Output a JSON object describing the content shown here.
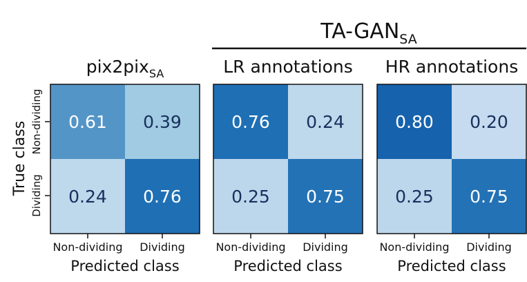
{
  "group_title": {
    "main": "TA-GAN",
    "sub": "SA"
  },
  "y_axis_label": "True class",
  "x_axis_label": "Predicted class",
  "categories": [
    "Non-dividing",
    "Dividing"
  ],
  "chart_data": [
    {
      "type": "heatmap",
      "title": "pix2pix",
      "title_sub": "SA",
      "xlabel": "Predicted class",
      "ylabel": "True class",
      "x_categories": [
        "Non-dividing",
        "Dividing"
      ],
      "y_categories": [
        "Non-dividing",
        "Dividing"
      ],
      "values": [
        [
          0.61,
          0.39
        ],
        [
          0.24,
          0.76
        ]
      ],
      "value_labels": [
        [
          "0.61",
          "0.39"
        ],
        [
          "0.24",
          "0.76"
        ]
      ]
    },
    {
      "type": "heatmap",
      "title": "LR annotations",
      "title_sub": "",
      "xlabel": "Predicted class",
      "ylabel": "",
      "x_categories": [
        "Non-dividing",
        "Dividing"
      ],
      "y_categories": [],
      "values": [
        [
          0.76,
          0.24
        ],
        [
          0.25,
          0.75
        ]
      ],
      "value_labels": [
        [
          "0.76",
          "0.24"
        ],
        [
          "0.25",
          "0.75"
        ]
      ]
    },
    {
      "type": "heatmap",
      "title": "HR annotations",
      "title_sub": "",
      "xlabel": "Predicted class",
      "ylabel": "",
      "x_categories": [
        "Non-dividing",
        "Dividing"
      ],
      "y_categories": [],
      "values": [
        [
          0.8,
          0.2
        ],
        [
          0.25,
          0.75
        ]
      ],
      "value_labels": [
        [
          "0.80",
          "0.20"
        ],
        [
          "0.25",
          "0.75"
        ]
      ]
    }
  ],
  "colors": {
    "low": "#c6dbef",
    "mid": "#9ecae1",
    "high": "#1f6fb5",
    "top": "#1662ad",
    "text": "#18305c"
  }
}
